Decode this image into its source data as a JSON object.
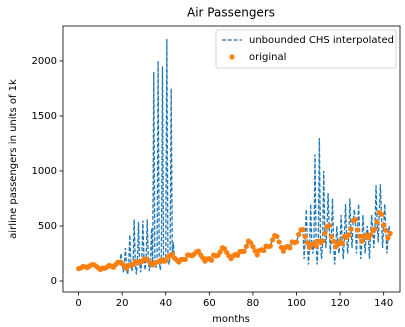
{
  "chart_data": {
    "type": "line",
    "title": "Air Passengers",
    "xlabel": "months",
    "ylabel": "airline passengers in units of 1k",
    "xlim": [
      -7.15,
      147.5
    ],
    "ylim": [
      -100,
      2318
    ],
    "xticks": [
      0,
      20,
      40,
      60,
      80,
      100,
      120,
      140
    ],
    "yticks": [
      0,
      500,
      1000,
      1500,
      2000
    ],
    "legend": "upper right",
    "series": [
      {
        "name": "unbounded CHS interpolated",
        "color": "#1f77b4",
        "style": "dashed",
        "x": [
          0,
          1,
          2,
          3,
          4,
          5,
          6,
          7,
          8,
          9,
          10,
          11,
          12,
          13,
          14,
          15,
          16,
          17,
          18,
          19,
          19.5,
          20,
          20.5,
          21,
          21.5,
          22,
          22.5,
          23,
          23.5,
          24,
          24.5,
          25,
          25.5,
          26,
          26.5,
          27,
          27.5,
          28,
          28.5,
          29,
          29.5,
          30,
          30.5,
          31,
          31.5,
          32,
          32.5,
          33,
          33.5,
          34,
          34.5,
          35,
          35.5,
          36,
          36.5,
          37,
          37.5,
          38,
          38.5,
          39,
          39.5,
          40,
          40.5,
          41,
          41.5,
          42,
          42.5,
          43,
          43.5,
          44,
          45,
          46,
          47,
          48,
          49,
          50,
          51,
          52,
          53,
          54,
          55,
          56,
          57,
          58,
          59,
          60,
          61,
          62,
          63,
          64,
          65,
          66,
          67,
          68,
          69,
          70,
          71,
          72,
          73,
          74,
          75,
          76,
          77,
          78,
          79,
          80,
          81,
          82,
          83,
          84,
          85,
          86,
          87,
          88,
          89,
          90,
          91,
          92,
          93,
          94,
          95,
          96,
          97,
          98,
          99,
          100,
          101,
          102,
          103,
          103.5,
          104,
          104.5,
          105,
          105.5,
          106,
          106.5,
          107,
          107.5,
          108,
          108.5,
          109,
          109.5,
          110,
          110.5,
          111,
          111.5,
          112,
          112.5,
          113,
          113.5,
          114,
          114.5,
          115,
          115.5,
          116,
          116.5,
          117,
          117.5,
          118,
          118.5,
          119,
          119.5,
          120,
          120.5,
          121,
          121.5,
          122,
          122.5,
          123,
          123.5,
          124,
          124.5,
          125,
          125.5,
          126,
          126.5,
          127,
          127.5,
          128,
          128.5,
          129,
          129.5,
          130,
          130.5,
          131,
          131.5,
          132,
          132.5,
          133,
          133.5,
          134,
          134.5,
          135,
          135.5,
          136,
          136.5,
          137,
          137.5,
          138,
          138.5,
          139,
          139.5,
          140,
          140.5,
          141,
          141.5,
          142,
          142.5,
          143
        ],
        "values": [
          112,
          118,
          132,
          129,
          121,
          135,
          148,
          148,
          136,
          119,
          104,
          118,
          115,
          126,
          141,
          135,
          125,
          149,
          170,
          170,
          250,
          158,
          80,
          133,
          300,
          114,
          60,
          140,
          420,
          145,
          90,
          150,
          560,
          178,
          60,
          163,
          540,
          172,
          80,
          178,
          550,
          199,
          100,
          199,
          560,
          184,
          90,
          162,
          480,
          146,
          1900,
          166,
          120,
          171,
          2000,
          180,
          100,
          193,
          1950,
          181,
          200,
          183,
          2200,
          218,
          150,
          230,
          1750,
          242,
          350,
          209,
          191,
          172,
          194,
          196,
          196,
          236,
          235,
          229,
          243,
          264,
          272,
          237,
          211,
          180,
          201,
          204,
          188,
          235,
          227,
          234,
          264,
          302,
          293,
          259,
          229,
          203,
          229,
          242,
          233,
          267,
          269,
          270,
          315,
          364,
          347,
          312,
          274,
          237,
          278,
          284,
          277,
          317,
          313,
          318,
          374,
          413,
          405,
          355,
          306,
          271,
          306,
          315,
          301,
          356,
          348,
          355,
          422,
          465,
          467,
          200,
          404,
          650,
          347,
          150,
          305,
          700,
          336,
          250,
          340,
          1150,
          318,
          150,
          362,
          1300,
          348,
          200,
          363,
          1000,
          435,
          300,
          491,
          800,
          505,
          250,
          404,
          750,
          359,
          150,
          310,
          500,
          337,
          250,
          360,
          600,
          342,
          200,
          406,
          700,
          396,
          250,
          420,
          750,
          472,
          300,
          548,
          650,
          559,
          250,
          463,
          700,
          407,
          200,
          362,
          600,
          405,
          250,
          417,
          500,
          391,
          200,
          419,
          600,
          461,
          300,
          472,
          870,
          535,
          350,
          622,
          880,
          606,
          300,
          508,
          700,
          461,
          250,
          390,
          500,
          432
        ]
      },
      {
        "name": "original",
        "color": "#ff7f0e",
        "style": "dots",
        "x": [
          0,
          1,
          2,
          3,
          4,
          5,
          6,
          7,
          8,
          9,
          10,
          11,
          12,
          13,
          14,
          15,
          16,
          17,
          18,
          19,
          20,
          21,
          22,
          23,
          24,
          25,
          26,
          27,
          28,
          29,
          30,
          31,
          32,
          33,
          34,
          35,
          36,
          37,
          38,
          39,
          40,
          41,
          42,
          43,
          44,
          45,
          46,
          47,
          48,
          49,
          50,
          51,
          52,
          53,
          54,
          55,
          56,
          57,
          58,
          59,
          60,
          61,
          62,
          63,
          64,
          65,
          66,
          67,
          68,
          69,
          70,
          71,
          72,
          73,
          74,
          75,
          76,
          77,
          78,
          79,
          80,
          81,
          82,
          83,
          84,
          85,
          86,
          87,
          88,
          89,
          90,
          91,
          92,
          93,
          94,
          95,
          96,
          97,
          98,
          99,
          100,
          101,
          102,
          103,
          104,
          105,
          106,
          107,
          108,
          109,
          110,
          111,
          112,
          113,
          114,
          115,
          116,
          117,
          118,
          119,
          120,
          121,
          122,
          123,
          124,
          125,
          126,
          127,
          128,
          129,
          130,
          131,
          132,
          133,
          134,
          135,
          136,
          137,
          138,
          139,
          140,
          141,
          142,
          143
        ],
        "values": [
          112,
          118,
          132,
          129,
          121,
          135,
          148,
          148,
          136,
          119,
          104,
          118,
          115,
          126,
          141,
          135,
          125,
          149,
          170,
          170,
          158,
          133,
          114,
          140,
          145,
          150,
          178,
          163,
          172,
          178,
          199,
          199,
          184,
          162,
          146,
          166,
          171,
          180,
          193,
          181,
          183,
          218,
          230,
          242,
          209,
          191,
          172,
          194,
          196,
          196,
          236,
          235,
          229,
          243,
          264,
          272,
          237,
          211,
          180,
          201,
          204,
          188,
          235,
          227,
          234,
          264,
          302,
          293,
          259,
          229,
          203,
          229,
          242,
          233,
          267,
          269,
          270,
          315,
          364,
          347,
          312,
          274,
          237,
          278,
          284,
          277,
          317,
          313,
          318,
          374,
          413,
          405,
          355,
          306,
          271,
          306,
          315,
          301,
          356,
          348,
          355,
          422,
          465,
          467,
          404,
          347,
          305,
          336,
          340,
          318,
          362,
          348,
          363,
          435,
          491,
          505,
          404,
          359,
          310,
          337,
          360,
          342,
          406,
          396,
          420,
          472,
          548,
          559,
          463,
          407,
          362,
          405,
          417,
          391,
          419,
          461,
          472,
          535,
          622,
          606,
          508,
          461,
          390,
          432
        ]
      }
    ]
  }
}
